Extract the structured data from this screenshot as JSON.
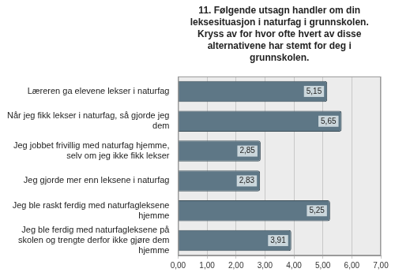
{
  "chart_data": {
    "type": "bar",
    "orientation": "horizontal",
    "title": "11. Følgende utsagn handler om din leksesituasjon i naturfag i grunnskolen. Kryss av for hvor ofte hvert av disse alternativene har stemt for deg i grunnskolen.",
    "categories": [
      "Læreren ga elevene lekser i naturfag",
      "Når jeg fikk lekser i naturfag, så gjorde jeg dem",
      "Jeg jobbet frivillig med naturfag hjemme, selv om jeg ikke fikk lekser",
      "Jeg gjorde mer enn leksene i naturfag",
      "Jeg ble raskt ferdig med naturfagleksene hjemme",
      "Jeg ble ferdig med naturfagleksene på skolen og trengte derfor ikke gjøre dem hjemme"
    ],
    "values": [
      5.15,
      5.65,
      2.85,
      2.83,
      5.25,
      3.91
    ],
    "value_labels": [
      "5,15",
      "5,65",
      "2,85",
      "2,83",
      "5,25",
      "3,91"
    ],
    "color": "#5e7786",
    "xlim": [
      0,
      7
    ],
    "xticks": [
      {
        "value": 0,
        "label": "0,00"
      },
      {
        "value": 1,
        "label": "1,00"
      },
      {
        "value": 2,
        "label": "2,00"
      },
      {
        "value": 3,
        "label": "3,00"
      },
      {
        "value": 4,
        "label": "4,00"
      },
      {
        "value": 5,
        "label": "5,00"
      },
      {
        "value": 6,
        "label": "6,00"
      },
      {
        "value": 7,
        "label": "7,00"
      }
    ],
    "grid": true,
    "data_labels": true
  }
}
